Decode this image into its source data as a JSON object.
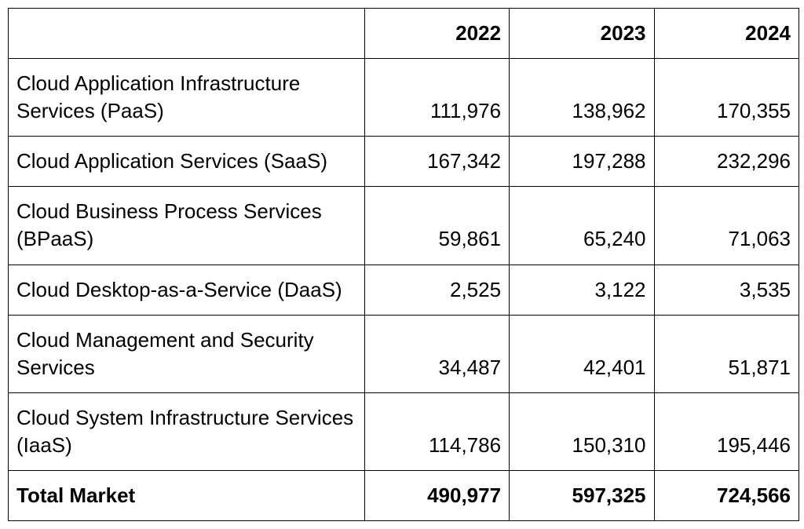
{
  "table": {
    "type": "table",
    "background_color": "#ffffff",
    "border_color": "#000000",
    "text_color": "#000000",
    "header_fontsize": 26,
    "cell_fontsize": 26,
    "header_fontweight": 700,
    "cell_fontweight": 400,
    "columns": [
      {
        "key": "category",
        "label": "",
        "align": "left",
        "width_pct": 45
      },
      {
        "key": "y2022",
        "label": "2022",
        "align": "right",
        "width_pct": 18.3
      },
      {
        "key": "y2023",
        "label": "2023",
        "align": "right",
        "width_pct": 18.3
      },
      {
        "key": "y2024",
        "label": "2024",
        "align": "right",
        "width_pct": 18.3
      }
    ],
    "rows": [
      {
        "category": "Cloud Application Infrastructure Services (PaaS)",
        "y2022": "111,976",
        "y2023": "138,962",
        "y2024": "170,355"
      },
      {
        "category": "Cloud Application Services (SaaS)",
        "y2022": "167,342",
        "y2023": "197,288",
        "y2024": "232,296"
      },
      {
        "category": "Cloud Business Process Services (BPaaS)",
        "y2022": "59,861",
        "y2023": "65,240",
        "y2024": "71,063"
      },
      {
        "category": "Cloud Desktop-as-a-Service (DaaS)",
        "y2022": "2,525",
        "y2023": "3,122",
        "y2024": "3,535"
      },
      {
        "category": "Cloud Management and Security Services",
        "y2022": "34,487",
        "y2023": "42,401",
        "y2024": "51,871"
      },
      {
        "category": "Cloud System Infrastructure Services (IaaS)",
        "y2022": "114,786",
        "y2023": "150,310",
        "y2024": "195,446"
      }
    ],
    "total_row": {
      "category": "Total Market",
      "y2022": "490,977",
      "y2023": "597,325",
      "y2024": "724,566"
    }
  }
}
